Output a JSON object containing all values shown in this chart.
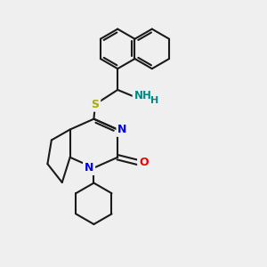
{
  "background_color": "#efefef",
  "bond_color": "#1a1a1a",
  "bond_width": 1.5,
  "figsize": [
    3.0,
    3.0
  ],
  "dpi": 100,
  "atom_colors": {
    "N": "#0000ee",
    "O": "#ee0000",
    "S": "#aaaa00",
    "NH2_N": "#008888",
    "H": "#008888",
    "C": "#1a1a1a"
  },
  "xlim": [
    0,
    10
  ],
  "ylim": [
    0,
    10
  ]
}
